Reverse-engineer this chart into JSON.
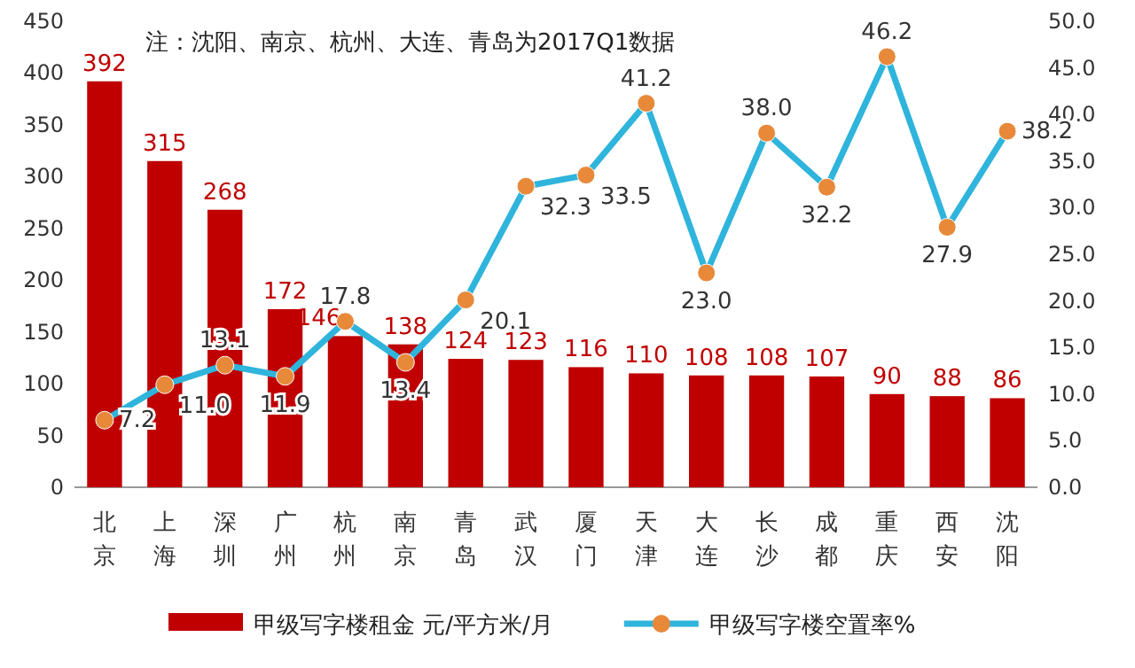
{
  "chart_data": {
    "type": "bar",
    "categories": [
      "北京",
      "上海",
      "深圳",
      "广州",
      "杭州",
      "南京",
      "青岛",
      "武汉",
      "厦门",
      "天津",
      "大连",
      "长沙",
      "成都",
      "重庆",
      "西安",
      "沈阳"
    ],
    "series": [
      {
        "name": "甲级写字楼租金 元/平方米/月",
        "color": "#c00000",
        "values": [
          392,
          315,
          268,
          172,
          146,
          138,
          124,
          123,
          116,
          110,
          108,
          108,
          107,
          90,
          88,
          86
        ]
      },
      {
        "name": "甲级写字楼空置率%",
        "type": "line",
        "axis": "y2",
        "color": "#2fb4dc",
        "values": [
          7.2,
          11.0,
          13.1,
          11.9,
          17.8,
          13.4,
          20.1,
          32.3,
          33.5,
          41.2,
          23.0,
          38.0,
          32.2,
          46.2,
          27.9,
          38.2
        ],
        "value_labels": [
          "7.2",
          "11.0",
          "13.1",
          "11.9",
          "17.8",
          "13.4",
          "20.1",
          "32.3",
          "33.5",
          "41.2",
          "23.0",
          "38.0",
          "32.2",
          "46.2",
          "27.9",
          "38.2"
        ]
      }
    ],
    "ylim": [
      0,
      450
    ],
    "yticks": [
      0,
      50,
      100,
      150,
      200,
      250,
      300,
      350,
      400,
      450
    ],
    "y2lim": [
      0,
      50
    ],
    "y2ticks": [
      {
        "value": 0,
        "label": "0.0"
      },
      {
        "value": 5,
        "label": "5.0"
      },
      {
        "value": 10,
        "label": "10.0"
      },
      {
        "value": 15,
        "label": "15.0"
      },
      {
        "value": 20,
        "label": "20.0"
      },
      {
        "value": 25,
        "label": "25.0"
      },
      {
        "value": 30,
        "label": "30.0"
      },
      {
        "value": 35,
        "label": "35.0"
      },
      {
        "value": 40,
        "label": "40.0"
      },
      {
        "value": 45,
        "label": "45.0"
      },
      {
        "value": 50,
        "label": "50.0"
      }
    ],
    "data_labels": true,
    "marker": "circle",
    "legend": "bottom",
    "grid": false,
    "annotations": [
      "注：沈阳、南京、杭州、大连、青岛为2017Q1数据"
    ]
  }
}
